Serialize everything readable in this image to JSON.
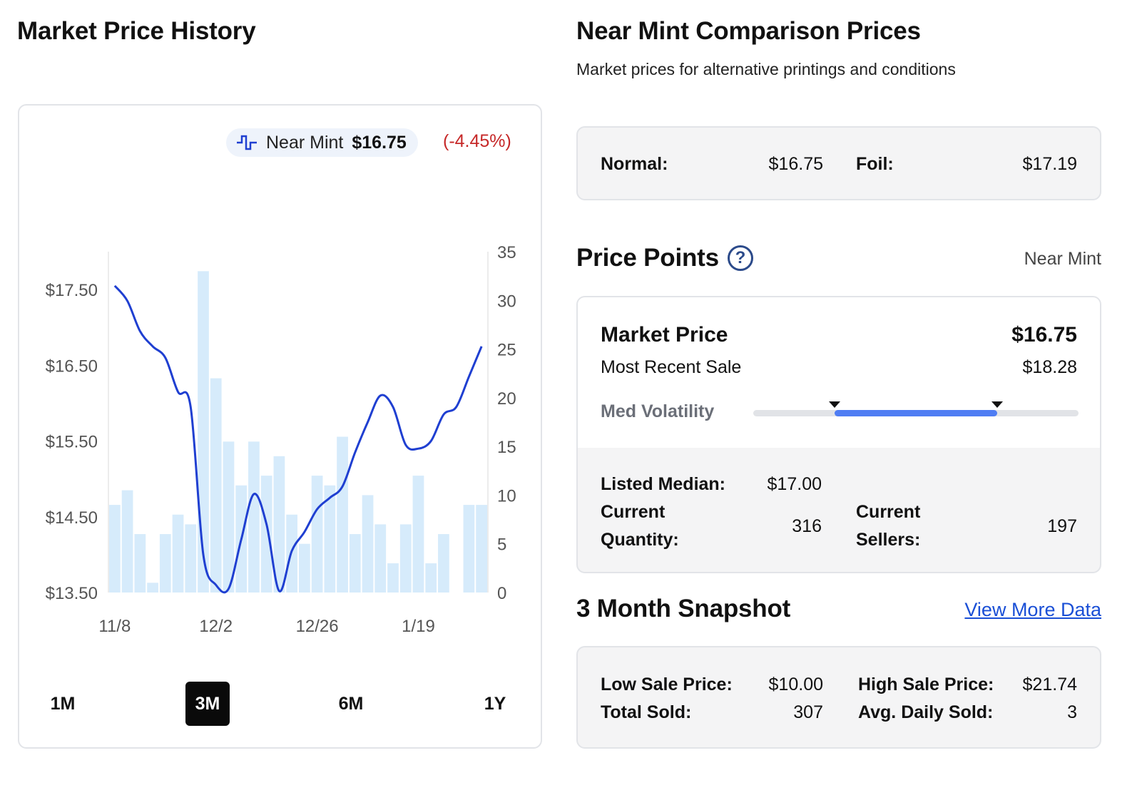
{
  "left": {
    "title": "Market Price History",
    "legend": {
      "label": "Near Mint",
      "value": "$16.75"
    },
    "change": "(-4.45%)",
    "ranges": [
      "1M",
      "3M",
      "6M",
      "1Y"
    ],
    "active_range": "3M"
  },
  "chart_data": {
    "type": "line",
    "y_left_ticks": [
      "$17.50",
      "$16.50",
      "$15.50",
      "$14.50",
      "$13.50"
    ],
    "y_right_ticks": [
      "35",
      "30",
      "25",
      "20",
      "15",
      "10",
      "5",
      "0"
    ],
    "x_ticks": [
      "11/8",
      "12/2",
      "12/26",
      "1/19"
    ],
    "price_ylim": [
      13.5,
      18.0
    ],
    "volume_ylim": [
      0,
      35
    ],
    "colors": {
      "line": "#1f3fd1",
      "bars": "#d6ebfb"
    },
    "series": [
      {
        "name": "Near Mint",
        "values": [
          17.55,
          17.35,
          16.95,
          16.75,
          16.6,
          16.15,
          15.95,
          14.0,
          13.6,
          13.55,
          14.2,
          14.8,
          14.4,
          13.52,
          14.05,
          14.3,
          14.6,
          14.75,
          14.9,
          15.35,
          15.75,
          16.1,
          15.95,
          15.45,
          15.4,
          15.5,
          15.85,
          15.95,
          16.35,
          16.75
        ]
      },
      {
        "name": "",
        "values": [
          9,
          10.5,
          6,
          1,
          6,
          8,
          7,
          33,
          22,
          15.5,
          11,
          15.5,
          12,
          14,
          8,
          5,
          12,
          11,
          16,
          6,
          10,
          7,
          3,
          7,
          12,
          3,
          6,
          0,
          9,
          9
        ]
      }
    ]
  },
  "right": {
    "title": "Near Mint Comparison Prices",
    "subtitle": "Market prices for alternative printings and conditions",
    "normal_label": "Normal:",
    "normal_value": "$16.75",
    "foil_label": "Foil:",
    "foil_value": "$17.19",
    "price_points_title": "Price Points",
    "condition": "Near Mint",
    "market_price_label": "Market Price",
    "market_price_value": "$16.75",
    "recent_sale_label": "Most Recent Sale",
    "recent_sale_value": "$18.28",
    "volatility_label": "Med Volatility",
    "volatility_range": [
      0.25,
      0.75
    ],
    "listed_median_label": "Listed Median:",
    "listed_median_value": "$17.00",
    "current_quantity_label_1": "Current",
    "current_quantity_label_2": "Quantity:",
    "current_quantity_value": "316",
    "current_sellers_label_1": "Current",
    "current_sellers_label_2": "Sellers:",
    "current_sellers_value": "197",
    "snapshot_title": "3 Month Snapshot",
    "view_more": "View More Data",
    "low_sale_label": "Low Sale Price:",
    "low_sale_value": "$10.00",
    "high_sale_label": "High Sale Price:",
    "high_sale_value": "$21.74",
    "total_sold_label": "Total Sold:",
    "total_sold_value": "307",
    "avg_daily_label": "Avg. Daily Sold:",
    "avg_daily_value": "3"
  }
}
